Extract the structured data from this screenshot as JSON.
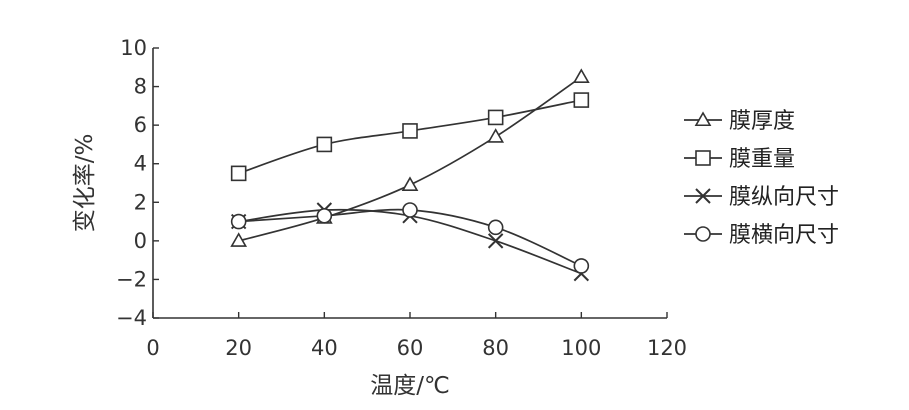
{
  "chart_data": {
    "type": "line",
    "xlabel": "温度/℃",
    "ylabel": "变化率/%",
    "xlim": [
      0,
      120
    ],
    "ylim": [
      -4,
      10
    ],
    "xticks": [
      0,
      20,
      40,
      60,
      80,
      100,
      120
    ],
    "yticks": [
      -4,
      -2,
      0,
      2,
      4,
      6,
      8,
      10
    ],
    "ytick_labels": [
      "−4",
      "−2",
      "0",
      "2",
      "4",
      "6",
      "8",
      "10"
    ],
    "grid": false,
    "legend_position": "right",
    "series": [
      {
        "name": "膜厚度",
        "marker": "triangle",
        "x": [
          20,
          40,
          60,
          80,
          100
        ],
        "values": [
          0.0,
          1.2,
          2.9,
          5.4,
          8.5
        ]
      },
      {
        "name": "膜重量",
        "marker": "square",
        "x": [
          20,
          40,
          60,
          80,
          100
        ],
        "values": [
          3.5,
          5.0,
          5.7,
          6.4,
          7.3
        ]
      },
      {
        "name": "膜纵向尺寸",
        "marker": "x",
        "x": [
          20,
          40,
          60,
          80,
          100
        ],
        "values": [
          1.0,
          1.6,
          1.3,
          0.0,
          -1.7
        ]
      },
      {
        "name": "膜横向尺寸",
        "marker": "circle",
        "x": [
          20,
          40,
          60,
          80,
          100
        ],
        "values": [
          1.0,
          1.3,
          1.6,
          0.7,
          -1.3
        ]
      }
    ]
  }
}
